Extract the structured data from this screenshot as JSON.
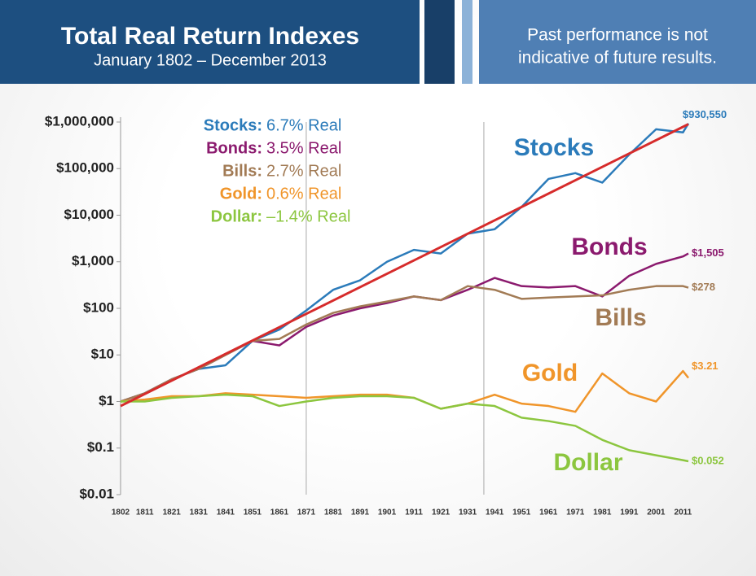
{
  "header": {
    "title": "Total Real Return Indexes",
    "subtitle": "January 1802 – December 2013",
    "disclaimer": [
      "Past performance is not",
      "indicative of future results."
    ]
  },
  "chart_data": {
    "type": "line",
    "log_scale": true,
    "xlim": [
      1802,
      2013
    ],
    "ylim": [
      0.01,
      1000000
    ],
    "xticks": [
      1802,
      1811,
      1821,
      1831,
      1841,
      1851,
      1861,
      1871,
      1881,
      1891,
      1901,
      1911,
      1921,
      1931,
      1941,
      1951,
      1961,
      1971,
      1981,
      1991,
      2001,
      2011
    ],
    "yticks": [
      {
        "value": 1000000,
        "label": "$1,000,000"
      },
      {
        "value": 100000,
        "label": "$100,000"
      },
      {
        "value": 10000,
        "label": "$10,000"
      },
      {
        "value": 1000,
        "label": "$1,000"
      },
      {
        "value": 100,
        "label": "$100"
      },
      {
        "value": 10,
        "label": "$10"
      },
      {
        "value": 1,
        "label": "$1"
      },
      {
        "value": 0.1,
        "label": "$0.1"
      },
      {
        "value": 0.01,
        "label": "$0.01"
      }
    ],
    "vlines": [
      1871,
      1937
    ],
    "x": [
      1802,
      1811,
      1821,
      1831,
      1841,
      1851,
      1861,
      1871,
      1881,
      1891,
      1901,
      1911,
      1921,
      1931,
      1941,
      1951,
      1961,
      1971,
      1981,
      1991,
      2001,
      2011,
      2013
    ],
    "series": [
      {
        "name": "Stocks",
        "legend_label": "Stocks:",
        "return": "6.7% Real",
        "color": "#2b7bba",
        "values": [
          1,
          1.5,
          3,
          5,
          6,
          20,
          35,
          90,
          250,
          400,
          1000,
          1800,
          1500,
          4000,
          5000,
          15000,
          60000,
          80000,
          50000,
          200000,
          700000,
          600000,
          930550
        ],
        "value_labels": [
          null,
          null,
          null,
          null,
          null,
          null,
          null,
          null,
          null,
          null,
          null,
          null,
          null,
          null,
          null,
          null,
          null,
          null,
          null,
          null,
          null,
          null,
          "$930,550"
        ]
      },
      {
        "name": "Bonds",
        "legend_label": "Bonds:",
        "return": "3.5% Real",
        "color": "#8b1a6e",
        "values": [
          1,
          1.5,
          3,
          5,
          10,
          20,
          16,
          40,
          70,
          100,
          130,
          180,
          150,
          250,
          450,
          300,
          280,
          300,
          180,
          500,
          900,
          1300,
          1505
        ],
        "value_labels": [
          null,
          null,
          null,
          null,
          null,
          null,
          null,
          null,
          null,
          null,
          null,
          null,
          null,
          null,
          null,
          null,
          null,
          null,
          null,
          null,
          null,
          null,
          "$1,505"
        ]
      },
      {
        "name": "Bills",
        "legend_label": "Bills:",
        "return": "2.7% Real",
        "color": "#a27b55",
        "values": [
          1,
          1.5,
          3,
          5,
          10,
          20,
          22,
          45,
          80,
          110,
          140,
          180,
          150,
          300,
          250,
          160,
          170,
          180,
          190,
          250,
          300,
          300,
          278
        ],
        "value_labels": [
          null,
          null,
          null,
          null,
          null,
          null,
          null,
          null,
          null,
          null,
          null,
          null,
          null,
          null,
          null,
          null,
          null,
          null,
          null,
          null,
          null,
          null,
          "$278"
        ]
      },
      {
        "name": "Gold",
        "legend_label": "Gold:",
        "return": "0.6% Real",
        "color": "#f0952a",
        "values": [
          1,
          1.1,
          1.3,
          1.3,
          1.5,
          1.4,
          1.3,
          1.2,
          1.3,
          1.4,
          1.4,
          1.2,
          0.7,
          0.9,
          1.4,
          0.9,
          0.8,
          0.6,
          4,
          1.5,
          1,
          4.5,
          3.21
        ],
        "value_labels": [
          null,
          null,
          null,
          null,
          null,
          null,
          null,
          null,
          null,
          null,
          null,
          null,
          null,
          null,
          null,
          null,
          null,
          null,
          null,
          null,
          null,
          null,
          "$3.21"
        ]
      },
      {
        "name": "Dollar",
        "legend_label": "Dollar:",
        "return": "–1.4% Real",
        "color": "#8cc63f",
        "values": [
          1,
          1,
          1.2,
          1.3,
          1.4,
          1.3,
          0.8,
          1,
          1.2,
          1.3,
          1.3,
          1.2,
          0.7,
          0.9,
          0.8,
          0.45,
          0.38,
          0.3,
          0.15,
          0.09,
          0.07,
          0.055,
          0.052
        ],
        "value_labels": [
          null,
          null,
          null,
          null,
          null,
          null,
          null,
          null,
          null,
          null,
          null,
          null,
          null,
          null,
          null,
          null,
          null,
          null,
          null,
          null,
          null,
          null,
          "$0.052"
        ]
      }
    ],
    "trend": {
      "color": "#d62b2b",
      "x": [
        1802,
        2013
      ],
      "values": [
        0.8,
        900000
      ]
    }
  }
}
